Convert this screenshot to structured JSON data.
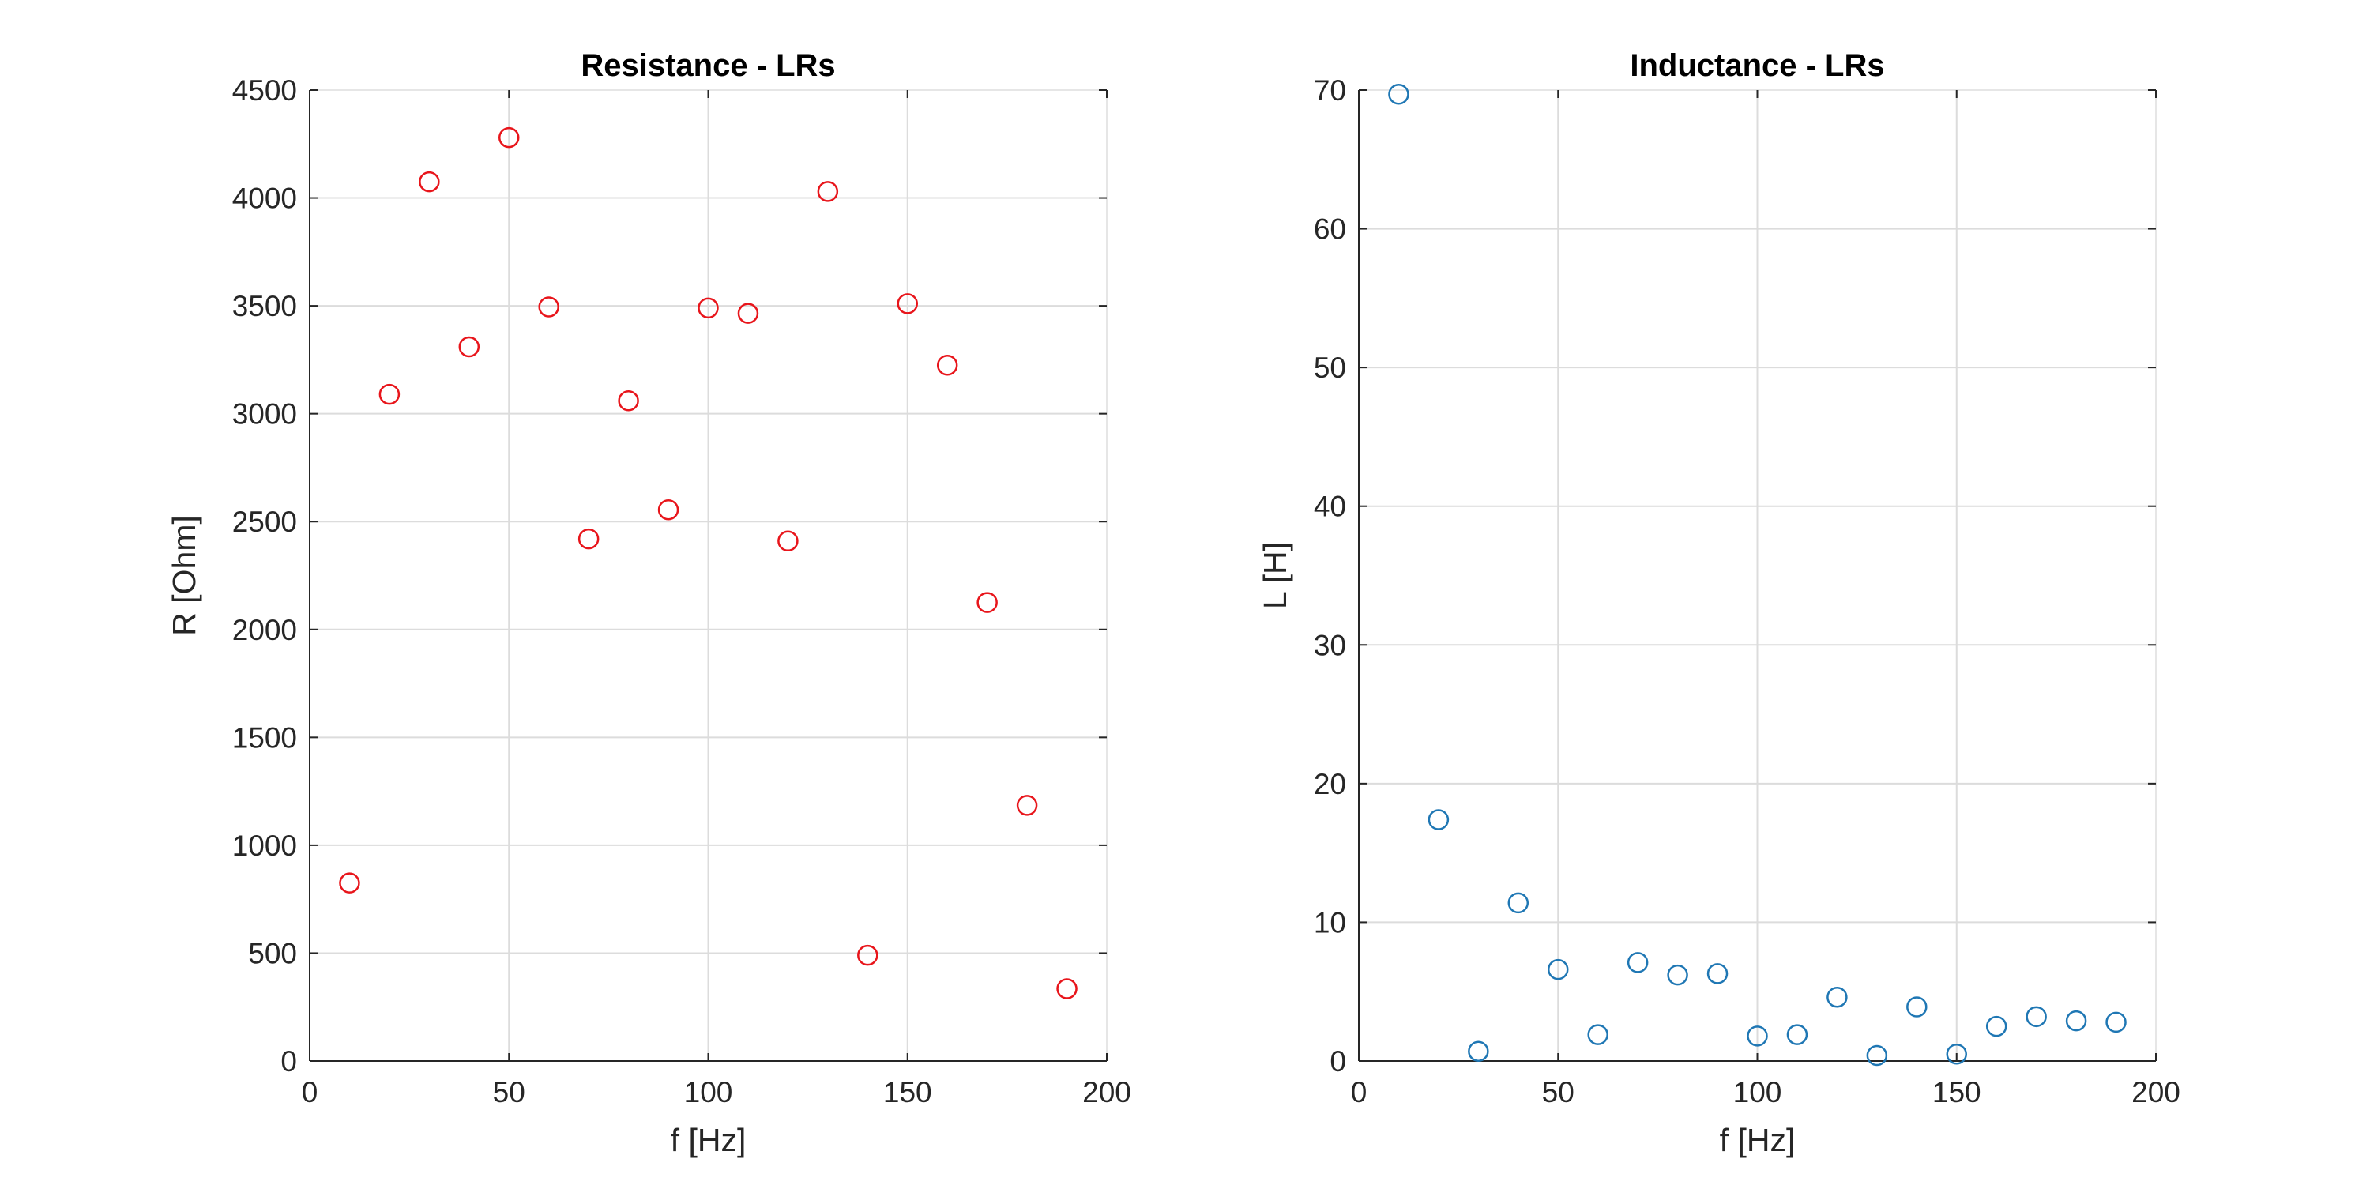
{
  "chart_data": [
    {
      "type": "scatter",
      "title": "Resistance - LRs",
      "xlabel": "f [Hz]",
      "ylabel": "R [Ohm]",
      "xlim": [
        0,
        200
      ],
      "ylim": [
        0,
        4500
      ],
      "xticks": [
        0,
        50,
        100,
        150,
        200
      ],
      "yticks": [
        0,
        500,
        1000,
        1500,
        2000,
        2500,
        3000,
        3500,
        4000,
        4500
      ],
      "grid": true,
      "marker": "circle",
      "color": "#e8151b",
      "series": [
        {
          "name": "R",
          "x": [
            10,
            20,
            30,
            40,
            50,
            60,
            70,
            80,
            90,
            100,
            110,
            120,
            130,
            140,
            150,
            160,
            170,
            180,
            190
          ],
          "y": [
            825,
            3090,
            4075,
            3310,
            4280,
            3495,
            2420,
            3060,
            2555,
            3490,
            3465,
            2410,
            4030,
            490,
            3510,
            3225,
            2125,
            1185,
            335
          ]
        }
      ]
    },
    {
      "type": "scatter",
      "title": "Inductance - LRs",
      "xlabel": "f [Hz]",
      "ylabel": "L [H]",
      "xlim": [
        0,
        200
      ],
      "ylim": [
        0,
        70
      ],
      "xticks": [
        0,
        50,
        100,
        150,
        200
      ],
      "yticks": [
        0,
        10,
        20,
        30,
        40,
        50,
        60,
        70
      ],
      "grid": true,
      "marker": "circle",
      "color": "#1f77b4",
      "series": [
        {
          "name": "L",
          "x": [
            10,
            20,
            30,
            40,
            50,
            60,
            70,
            80,
            90,
            100,
            110,
            120,
            130,
            140,
            150,
            160,
            170,
            180,
            190
          ],
          "y": [
            69.7,
            17.4,
            0.7,
            11.4,
            6.6,
            1.9,
            7.1,
            6.2,
            6.3,
            1.8,
            1.9,
            4.6,
            0.4,
            3.9,
            0.5,
            2.5,
            3.2,
            2.9,
            2.8
          ]
        }
      ]
    }
  ]
}
